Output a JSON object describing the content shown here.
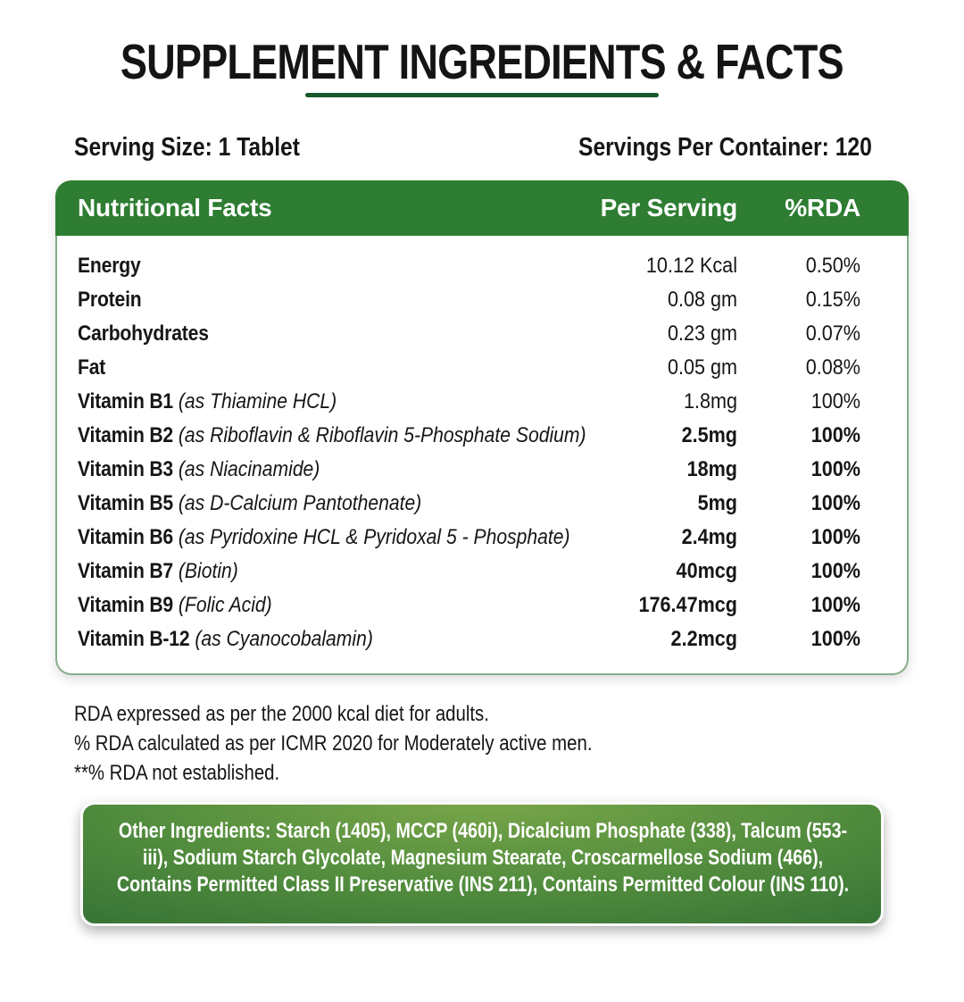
{
  "header": {
    "title": "SUPPLEMENT INGREDIENTS & FACTS",
    "serving_size": "Serving Size: 1 Tablet",
    "servings_per_container": "Servings Per Container: 120"
  },
  "table": {
    "columns": {
      "name": "Nutritional Facts",
      "per_serving": "Per Serving",
      "rda": "%RDA"
    },
    "rows": [
      {
        "name": "Energy",
        "detail": "",
        "per_serving": "10.12 Kcal",
        "rda": "0.50%",
        "emphasis": false
      },
      {
        "name": "Protein",
        "detail": "",
        "per_serving": "0.08 gm",
        "rda": "0.15%",
        "emphasis": false
      },
      {
        "name": "Carbohydrates",
        "detail": "",
        "per_serving": "0.23 gm",
        "rda": "0.07%",
        "emphasis": false
      },
      {
        "name": "Fat",
        "detail": "",
        "per_serving": "0.05 gm",
        "rda": "0.08%",
        "emphasis": false
      },
      {
        "name": "Vitamin B1",
        "detail": "(as Thiamine HCL)",
        "per_serving": "1.8mg",
        "rda": "100%",
        "emphasis": false
      },
      {
        "name": "Vitamin B2",
        "detail": "(as Riboflavin & Riboflavin 5-Phosphate Sodium)",
        "per_serving": "2.5mg",
        "rda": "100%",
        "emphasis": true
      },
      {
        "name": "Vitamin B3",
        "detail": "(as Niacinamide)",
        "per_serving": "18mg",
        "rda": "100%",
        "emphasis": true
      },
      {
        "name": "Vitamin B5",
        "detail": "(as D-Calcium Pantothenate)",
        "per_serving": "5mg",
        "rda": "100%",
        "emphasis": true
      },
      {
        "name": "Vitamin B6",
        "detail": "(as Pyridoxine HCL & Pyridoxal 5 - Phosphate)",
        "per_serving": "2.4mg",
        "rda": "100%",
        "emphasis": true
      },
      {
        "name": "Vitamin B7",
        "detail": "(Biotin)",
        "per_serving": "40mcg",
        "rda": "100%",
        "emphasis": true
      },
      {
        "name": "Vitamin B9",
        "detail": "(Folic Acid)",
        "per_serving": "176.47mcg",
        "rda": "100%",
        "emphasis": true
      },
      {
        "name": "Vitamin B-12",
        "detail": "(as Cyanocobalamin)",
        "per_serving": "2.2mcg",
        "rda": "100%",
        "emphasis": true
      }
    ]
  },
  "notes": [
    "RDA expressed as per the 2000 kcal diet for adults.",
    "% RDA calculated as per ICMR 2020 for Moderately active men.",
    "**% RDA not established."
  ],
  "other_ingredients": {
    "text": "Other Ingredients: Starch (1405), MCCP (460i), Dicalcium Phosphate (338), Talcum (553-iii), Sodium Starch Glycolate, Magnesium Stearate, Croscarmellose Sodium (466), Contains Permitted Class II Preservative (INS 211), Contains Permitted Colour (INS 110)."
  },
  "colors": {
    "table_header_green": "#2e7d32",
    "title_underline_green": "#19592c",
    "table_border_green": "#85ad87",
    "box_gradient_top": "#7ba74a",
    "box_gradient_mid": "#548e3e",
    "box_gradient_bottom": "#2d6b33"
  }
}
